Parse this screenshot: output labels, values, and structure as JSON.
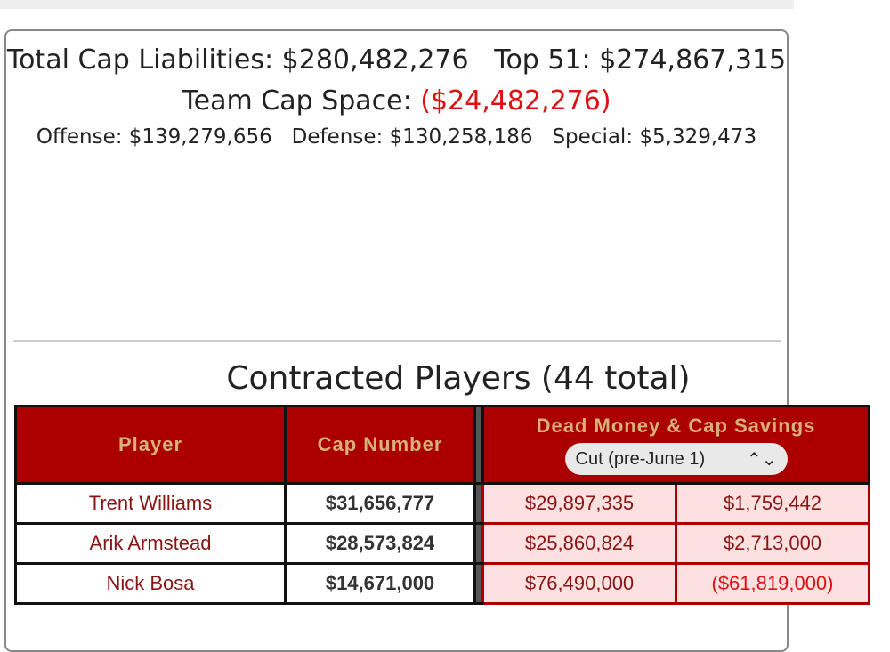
{
  "summary": {
    "total_label": "Total Cap Liabilities: $280,482,276",
    "top51_label": "Top 51: $274,867,315",
    "space_label": "Team Cap Space:",
    "space_value": "($24,482,276)",
    "offense": "Offense: $139,279,656",
    "defense": "Defense: $130,258,186",
    "special": "Special: $5,329,473"
  },
  "section_title": "Contracted Players (44 total)",
  "table": {
    "headers": {
      "player": "Player",
      "cap": "Cap Number",
      "dead": "Dead Money & Cap Savings"
    },
    "select_value": "Cut (pre-June 1)",
    "rows": [
      {
        "player": "Trent Williams",
        "cap": "$31,656,777",
        "dead": "$29,897,335",
        "savings": "$1,759,442"
      },
      {
        "player": "Arik Armstead",
        "cap": "$28,573,824",
        "dead": "$25,860,824",
        "savings": "$2,713,000"
      },
      {
        "player": "Nick Bosa",
        "cap": "$14,671,000",
        "dead": "$76,490,000",
        "savings": "($61,819,000)"
      }
    ]
  }
}
